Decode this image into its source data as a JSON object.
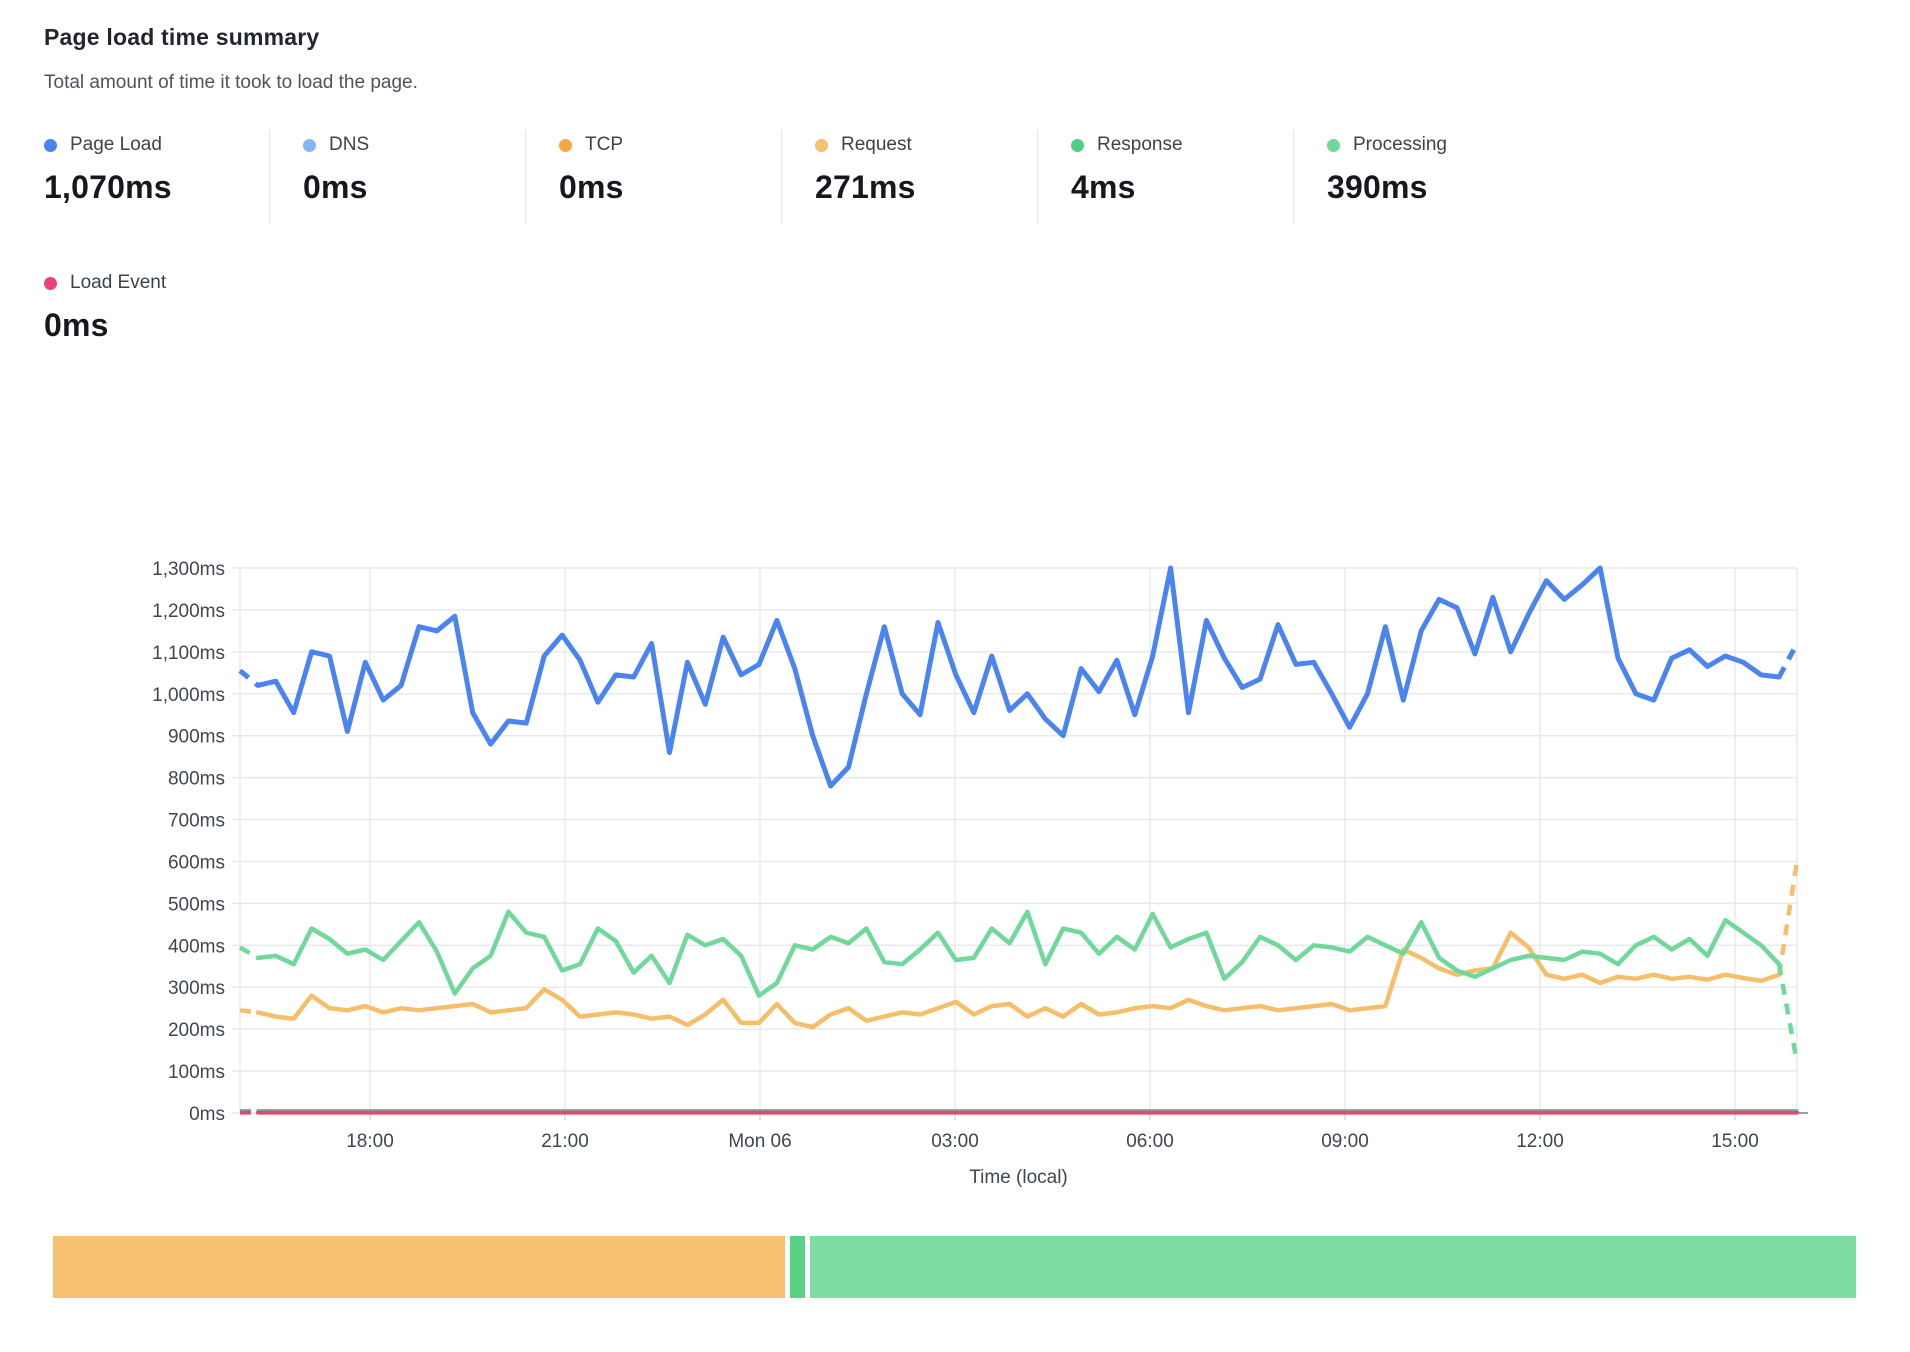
{
  "page": {
    "title": "Page load time summary",
    "subtitle": "Total amount of time it took to load the page."
  },
  "metrics": [
    {
      "label": "Page Load",
      "value": "1,070ms",
      "color": "#4a84f0"
    },
    {
      "label": "DNS",
      "value": "0ms",
      "color": "#85b5f8"
    },
    {
      "label": "TCP",
      "value": "0ms",
      "color": "#f6a843"
    },
    {
      "label": "Request",
      "value": "271ms",
      "color": "#f7c170"
    },
    {
      "label": "Response",
      "value": "4ms",
      "color": "#4fcd89"
    },
    {
      "label": "Processing",
      "value": "390ms",
      "color": "#6ed99a"
    }
  ],
  "load_event": {
    "label": "Load Event",
    "value": "0ms",
    "color": "#ee4377"
  },
  "chart_data": {
    "type": "line",
    "title": "Page load time summary",
    "xlabel": "Time (local)",
    "ylabel": "",
    "ylim": [
      0,
      1300
    ],
    "ytick_step": 100,
    "ytick_suffix": "ms",
    "grid": true,
    "xtick_labels": [
      "18:00",
      "21:00",
      "Mon 06",
      "03:00",
      "06:00",
      "09:00",
      "12:00",
      "15:00"
    ],
    "note": "last and first segments of each series are dashed (partial intervals)",
    "series": [
      {
        "name": "Response",
        "color": "#52ce8b",
        "width": 3,
        "flat": 6,
        "dash_first": true,
        "dash_last": false
      },
      {
        "name": "Load Event",
        "color": "#ea4379",
        "width": 4,
        "flat": 1,
        "dash_first": true,
        "dash_last": false
      },
      {
        "name": "Request",
        "color": "#f7be6a",
        "width": 4.5,
        "dash_first": true,
        "dash_last": true,
        "values": [
          245,
          240,
          230,
          225,
          280,
          250,
          245,
          255,
          240,
          250,
          245,
          250,
          255,
          260,
          240,
          245,
          250,
          295,
          270,
          230,
          235,
          240,
          235,
          225,
          230,
          210,
          235,
          270,
          215,
          215,
          260,
          215,
          205,
          235,
          250,
          220,
          230,
          240,
          235,
          250,
          265,
          235,
          255,
          260,
          230,
          250,
          230,
          260,
          235,
          240,
          250,
          255,
          250,
          270,
          255,
          245,
          250,
          255,
          245,
          250,
          255,
          260,
          245,
          250,
          255,
          390,
          370,
          345,
          330,
          340,
          345,
          430,
          395,
          330,
          320,
          330,
          310,
          325,
          320,
          330,
          320,
          325,
          318,
          330,
          322,
          315,
          330,
          600
        ]
      },
      {
        "name": "Processing",
        "color": "#70d89b",
        "width": 4.5,
        "dash_first": true,
        "dash_last": true,
        "values": [
          395,
          370,
          375,
          355,
          440,
          415,
          380,
          390,
          365,
          410,
          455,
          385,
          285,
          345,
          375,
          480,
          430,
          420,
          340,
          355,
          440,
          410,
          335,
          375,
          310,
          425,
          400,
          415,
          375,
          280,
          310,
          400,
          390,
          420,
          405,
          440,
          360,
          355,
          390,
          430,
          365,
          370,
          440,
          405,
          480,
          355,
          440,
          430,
          380,
          420,
          390,
          475,
          395,
          415,
          430,
          320,
          360,
          420,
          400,
          365,
          400,
          395,
          385,
          420,
          400,
          380,
          455,
          370,
          340,
          325,
          345,
          365,
          375,
          370,
          365,
          385,
          380,
          355,
          400,
          420,
          390,
          415,
          375,
          460,
          430,
          400,
          355,
          120
        ]
      },
      {
        "name": "Page Load",
        "color": "#4a84f0",
        "width": 5,
        "dash_first": true,
        "dash_last": true,
        "values": [
          1055,
          1020,
          1030,
          955,
          1100,
          1090,
          910,
          1075,
          985,
          1020,
          1160,
          1150,
          1185,
          955,
          880,
          935,
          930,
          1090,
          1140,
          1080,
          980,
          1045,
          1040,
          1120,
          860,
          1075,
          975,
          1135,
          1045,
          1070,
          1175,
          1060,
          900,
          780,
          825,
          1000,
          1160,
          1000,
          950,
          1170,
          1045,
          955,
          1090,
          960,
          1000,
          940,
          900,
          1060,
          1005,
          1080,
          950,
          1090,
          1300,
          955,
          1175,
          1085,
          1015,
          1035,
          1165,
          1070,
          1075,
          1000,
          920,
          1000,
          1160,
          985,
          1150,
          1225,
          1205,
          1095,
          1230,
          1100,
          1190,
          1270,
          1225,
          1260,
          1300,
          1085,
          1000,
          985,
          1085,
          1105,
          1065,
          1090,
          1075,
          1045,
          1040,
          1120
        ]
      }
    ]
  },
  "status_bar": {
    "segments": [
      {
        "name": "segment-1",
        "color": "#f8c172",
        "width_pct": 40.6
      },
      {
        "name": "segment-2",
        "color": "#57d287",
        "width_pct": 0.8
      },
      {
        "name": "segment-3",
        "color": "#7edda2",
        "width_pct": 58.0
      }
    ]
  }
}
